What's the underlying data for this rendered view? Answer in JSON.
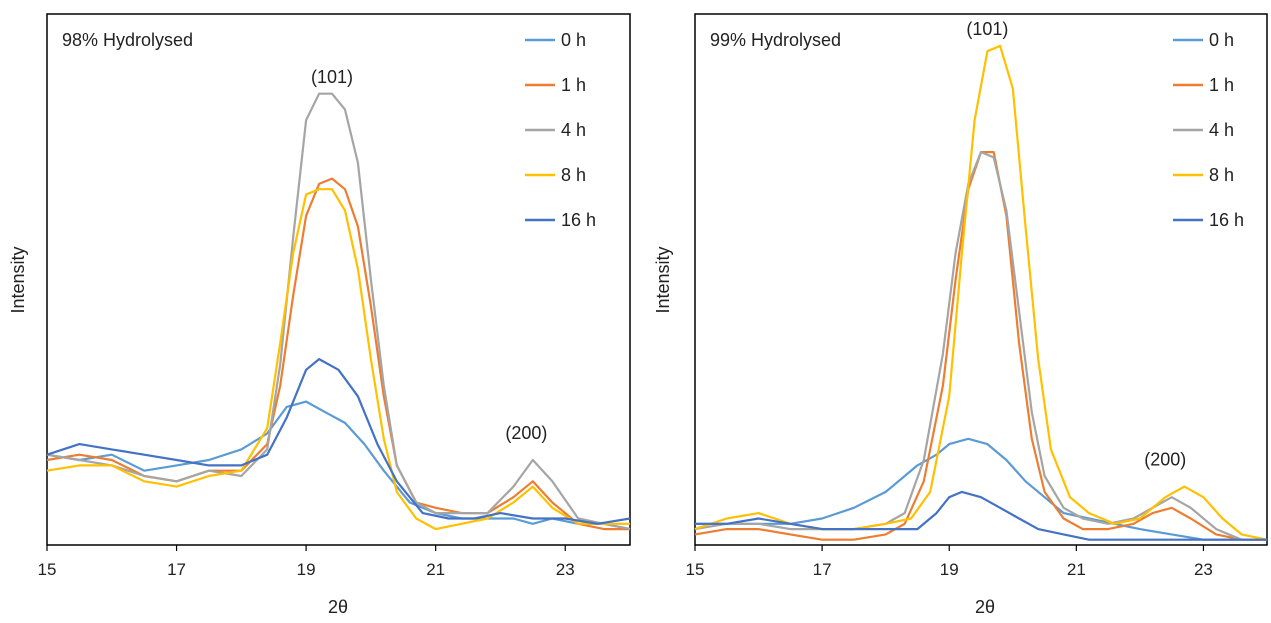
{
  "chart_data": [
    {
      "type": "line",
      "annotation": "98% Hydrolysed",
      "xlabel": "2θ",
      "ylabel": "Intensity",
      "xlim": [
        15,
        24
      ],
      "ylim": [
        0,
        100
      ],
      "x_ticks": [
        "15",
        "17",
        "19",
        "21",
        "23"
      ],
      "legend_position": "top-right",
      "peak_labels": [
        {
          "text": "(101)",
          "x": 19.4,
          "y": 87
        },
        {
          "text": "(200)",
          "x": 22.4,
          "y": 20
        }
      ],
      "series": [
        {
          "name": "0 h",
          "color": "#5B9BD5",
          "x": [
            15,
            15.5,
            16,
            16.5,
            17,
            17.5,
            18,
            18.4,
            18.7,
            19,
            19.3,
            19.6,
            19.9,
            20.2,
            20.6,
            21,
            21.4,
            21.8,
            22.2,
            22.5,
            22.8,
            23.2,
            23.6,
            24
          ],
          "y": [
            17,
            16,
            17,
            14,
            15,
            16,
            18,
            21,
            26,
            27,
            25,
            23,
            19,
            14,
            8,
            6,
            5,
            5,
            5,
            4,
            5,
            4,
            4,
            3
          ]
        },
        {
          "name": "1 h",
          "color": "#ED7D31",
          "x": [
            15,
            15.5,
            16,
            16.5,
            17,
            17.5,
            18,
            18.4,
            18.6,
            18.8,
            19,
            19.2,
            19.4,
            19.6,
            19.8,
            20,
            20.2,
            20.4,
            20.7,
            21,
            21.4,
            21.8,
            22.2,
            22.5,
            22.8,
            23.2,
            23.6,
            24
          ],
          "y": [
            16,
            17,
            16,
            13,
            12,
            14,
            14,
            19,
            30,
            47,
            62,
            68,
            69,
            67,
            60,
            45,
            28,
            15,
            8,
            7,
            6,
            6,
            9,
            12,
            8,
            4,
            3,
            3
          ]
        },
        {
          "name": "4 h",
          "color": "#A5A5A5",
          "x": [
            15,
            15.5,
            16,
            16.5,
            17,
            17.5,
            18,
            18.4,
            18.6,
            18.8,
            19,
            19.2,
            19.4,
            19.6,
            19.8,
            20,
            20.2,
            20.4,
            20.7,
            21,
            21.4,
            21.8,
            22.2,
            22.5,
            22.8,
            23.2,
            23.6,
            24
          ],
          "y": [
            17,
            16,
            15,
            13,
            12,
            14,
            13,
            18,
            34,
            58,
            80,
            85,
            85,
            82,
            72,
            50,
            30,
            15,
            8,
            6,
            6,
            6,
            11,
            16,
            12,
            5,
            4,
            3
          ]
        },
        {
          "name": "8 h",
          "color": "#FFC000",
          "x": [
            15,
            15.5,
            16,
            16.5,
            17,
            17.5,
            18,
            18.4,
            18.6,
            18.8,
            19,
            19.2,
            19.4,
            19.6,
            19.8,
            20,
            20.2,
            20.4,
            20.7,
            21,
            21.4,
            21.8,
            22.2,
            22.5,
            22.8,
            23.2,
            23.6,
            24
          ],
          "y": [
            14,
            15,
            15,
            12,
            11,
            13,
            14,
            22,
            38,
            55,
            66,
            67,
            67,
            63,
            52,
            35,
            20,
            10,
            5,
            3,
            4,
            5,
            8,
            11,
            7,
            4,
            4,
            4
          ]
        },
        {
          "name": "16 h",
          "color": "#4472C4",
          "x": [
            15,
            15.5,
            16,
            16.5,
            17,
            17.5,
            18,
            18.4,
            18.7,
            19,
            19.2,
            19.5,
            19.8,
            20.1,
            20.4,
            20.8,
            21.2,
            21.6,
            22,
            22.5,
            23,
            23.5,
            24
          ],
          "y": [
            17,
            19,
            18,
            17,
            16,
            15,
            15,
            17,
            24,
            33,
            35,
            33,
            28,
            19,
            12,
            6,
            5,
            5,
            6,
            5,
            5,
            4,
            5
          ]
        }
      ]
    },
    {
      "type": "line",
      "annotation": "99% Hydrolysed",
      "xlabel": "2θ",
      "ylabel": "Intensity",
      "xlim": [
        15,
        24
      ],
      "ylim": [
        0,
        100
      ],
      "x_ticks": [
        "15",
        "17",
        "19",
        "21",
        "23"
      ],
      "legend_position": "top-right",
      "peak_labels": [
        {
          "text": "(101)",
          "x": 19.6,
          "y": 96
        },
        {
          "text": "(200)",
          "x": 22.4,
          "y": 15
        }
      ],
      "series": [
        {
          "name": "0 h",
          "color": "#5B9BD5",
          "x": [
            15,
            15.5,
            16,
            16.5,
            17,
            17.5,
            18,
            18.5,
            18.8,
            19,
            19.3,
            19.6,
            19.9,
            20.2,
            20.5,
            20.8,
            21.2,
            21.6,
            22,
            22.5,
            23,
            23.5,
            24
          ],
          "y": [
            4,
            4,
            4,
            4,
            5,
            7,
            10,
            15,
            17,
            19,
            20,
            19,
            16,
            12,
            9,
            6,
            5,
            4,
            3,
            2,
            1,
            1,
            1
          ]
        },
        {
          "name": "1 h",
          "color": "#ED7D31",
          "x": [
            15,
            15.5,
            16,
            16.5,
            17,
            17.5,
            18,
            18.3,
            18.6,
            18.9,
            19.1,
            19.3,
            19.5,
            19.7,
            19.9,
            20.1,
            20.3,
            20.5,
            20.8,
            21.1,
            21.5,
            21.9,
            22.2,
            22.5,
            22.8,
            23.2,
            23.6,
            24
          ],
          "y": [
            2,
            3,
            3,
            2,
            1,
            1,
            2,
            4,
            12,
            30,
            50,
            67,
            74,
            74,
            62,
            38,
            20,
            10,
            5,
            3,
            3,
            4,
            6,
            7,
            5,
            2,
            1,
            1
          ]
        },
        {
          "name": "4 h",
          "color": "#A5A5A5",
          "x": [
            15,
            15.5,
            16,
            16.5,
            17,
            17.5,
            18,
            18.3,
            18.6,
            18.9,
            19.1,
            19.3,
            19.5,
            19.7,
            19.9,
            20.1,
            20.3,
            20.5,
            20.8,
            21.1,
            21.5,
            21.9,
            22.2,
            22.5,
            22.8,
            23.2,
            23.6,
            24
          ],
          "y": [
            3,
            4,
            4,
            3,
            3,
            3,
            4,
            6,
            16,
            36,
            55,
            68,
            74,
            73,
            63,
            44,
            25,
            13,
            7,
            5,
            4,
            5,
            7,
            9,
            7,
            3,
            1,
            1
          ]
        },
        {
          "name": "8 h",
          "color": "#FFC000",
          "x": [
            15,
            15.5,
            16,
            16.5,
            17,
            17.5,
            18,
            18.4,
            18.7,
            19,
            19.2,
            19.4,
            19.6,
            19.8,
            20,
            20.2,
            20.4,
            20.6,
            20.9,
            21.2,
            21.6,
            22,
            22.4,
            22.7,
            23,
            23.3,
            23.6,
            24
          ],
          "y": [
            3,
            5,
            6,
            4,
            3,
            3,
            4,
            5,
            10,
            28,
            55,
            80,
            93,
            94,
            86,
            60,
            35,
            18,
            9,
            6,
            4,
            5,
            9,
            11,
            9,
            5,
            2,
            1
          ]
        },
        {
          "name": "16 h",
          "color": "#4472C4",
          "x": [
            15,
            15.5,
            16,
            16.5,
            17,
            17.5,
            18,
            18.5,
            18.8,
            19,
            19.2,
            19.5,
            19.8,
            20.1,
            20.4,
            20.8,
            21.2,
            21.6,
            22,
            22.5,
            23,
            23.5,
            24
          ],
          "y": [
            4,
            4,
            5,
            4,
            3,
            3,
            3,
            3,
            6,
            9,
            10,
            9,
            7,
            5,
            3,
            2,
            1,
            1,
            1,
            1,
            1,
            1,
            1
          ]
        }
      ]
    }
  ]
}
